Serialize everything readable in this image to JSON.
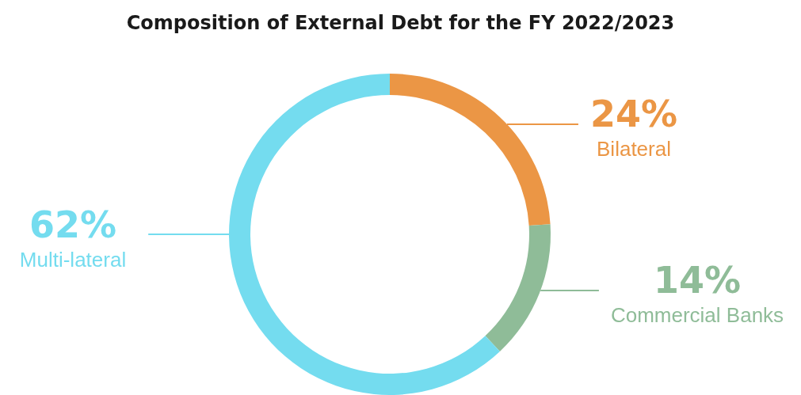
{
  "chart_data": {
    "type": "donut",
    "title": "Composition of External Debt for the FY 2022/2023",
    "categories": [
      "Bilateral",
      "Commercial Banks",
      "Multi-lateral"
    ],
    "values": [
      24,
      14,
      62
    ],
    "value_labels": [
      "24%",
      "14%",
      "62%"
    ],
    "colors": [
      "#eb9645",
      "#8fbc98",
      "#74dcef"
    ],
    "legend": false
  }
}
